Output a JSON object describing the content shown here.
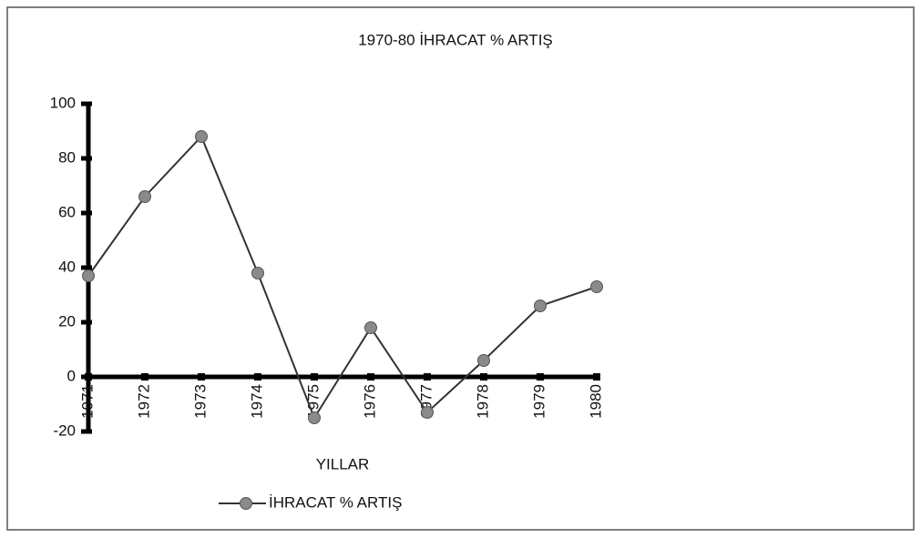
{
  "chart_data": {
    "type": "line",
    "title": "1970-80 İHRACAT % ARTIŞ",
    "x_label": "YILLAR",
    "categories": [
      "1971",
      "1972",
      "1973",
      "1974",
      "1975",
      "1976",
      "1977",
      "1978",
      "1979",
      "1980"
    ],
    "series": [
      {
        "name": "İHRACAT % ARTIŞ",
        "color": "#333333",
        "marker_color": "#8a8a8a",
        "values": [
          37,
          66,
          88,
          38,
          -15,
          18,
          -13,
          6,
          26,
          33
        ]
      }
    ],
    "ylim": [
      -20,
      100
    ],
    "yticks": [
      -20,
      0,
      20,
      40,
      60,
      80,
      100
    ],
    "grid": false,
    "legend": "bottom"
  }
}
